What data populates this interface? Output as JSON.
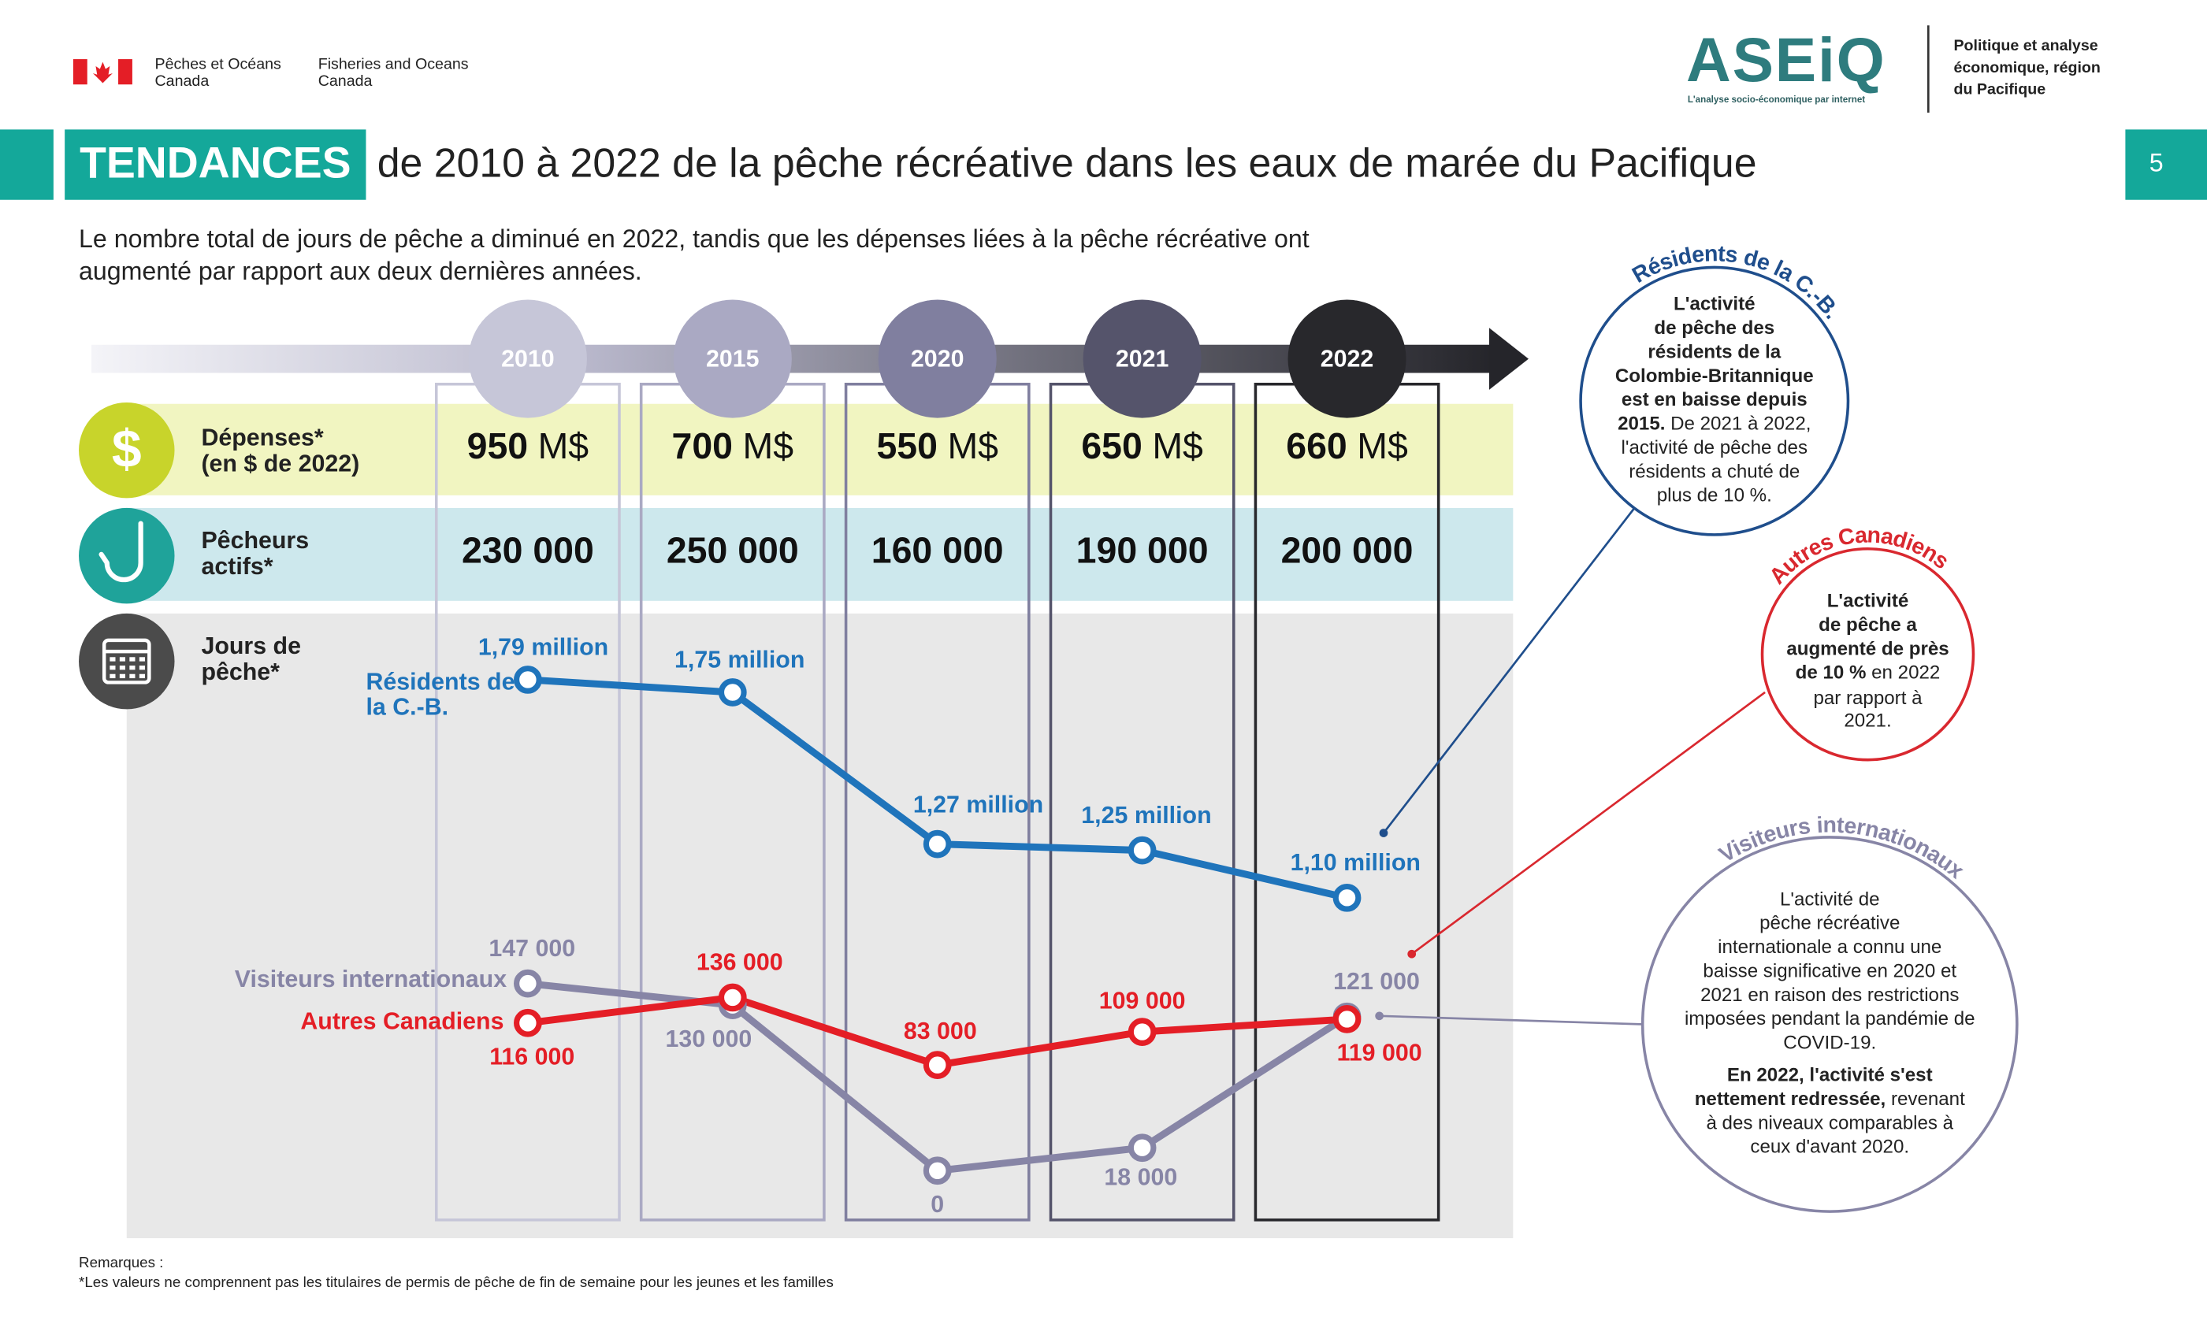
{
  "header": {
    "dept_fr": [
      "Pêches et Océans",
      "Canada"
    ],
    "dept_en": [
      "Fisheries and Oceans",
      "Canada"
    ],
    "logo": "ASEiQ",
    "logo_tagline": "L'analyse socio-économique par internet",
    "unit": [
      "Politique et analyse",
      "économique, région",
      "du Pacifique"
    ],
    "tag": "TENDANCES",
    "title": "de 2010 à 2022 de la pêche récréative dans les eaux de marée du Pacifique",
    "page": "5",
    "intro": [
      "Le nombre total de jours de pêche a diminué en 2022, tandis que les dépenses liées à la pêche récréative ont",
      "augmenté par rapport aux deux dernières années."
    ]
  },
  "rows": {
    "depenses": {
      "icon": "$",
      "label": [
        "Dépenses*",
        "(en $ de 2022)"
      ],
      "values": [
        950,
        700,
        550,
        650,
        660
      ],
      "unit": "M$"
    },
    "pecheurs": {
      "label": [
        "Pêcheurs",
        "actifs*"
      ],
      "values": [
        230000,
        250000,
        160000,
        190000,
        200000
      ],
      "value_labels": [
        "230 000",
        "250 000",
        "160 000",
        "190 000",
        "200 000"
      ]
    },
    "jours": {
      "label": [
        "Jours de",
        "pêche*"
      ]
    }
  },
  "chart_data": {
    "type": "line",
    "categories": [
      "2010",
      "2015",
      "2020",
      "2021",
      "2022"
    ],
    "ylim": [
      0,
      150000
    ],
    "y2lim": [
      1000000,
      1800000
    ],
    "series": [
      {
        "name": "Résidents de la C.-B.",
        "color": "#1f74bb",
        "axis": "y2",
        "values": [
          1790000,
          1750000,
          1270000,
          1250000,
          1100000
        ],
        "value_labels": [
          "1,79 million",
          "1,75 million",
          "1,27 million",
          "1,25 million",
          "1,10 million"
        ]
      },
      {
        "name": "Visiteurs internationaux",
        "color": "#8785a6",
        "values": [
          147000,
          130000,
          0,
          18000,
          121000
        ],
        "value_labels": [
          "147 000",
          "130 000",
          "0",
          "18 000",
          "121 000"
        ]
      },
      {
        "name": "Autres Canadiens",
        "color": "#e41e26",
        "values": [
          116000,
          136000,
          83000,
          109000,
          119000
        ],
        "value_labels": [
          "116 000",
          "136 000",
          "83 000",
          "109 000",
          "119 000"
        ]
      }
    ]
  },
  "callouts": [
    {
      "title": "Résidents de la C.-B.",
      "color": "#1f4e8c",
      "lines": [
        [
          {
            "text": "L'activité",
            "bold": true
          }
        ],
        [
          {
            "text": "de pêche des",
            "bold": true
          }
        ],
        [
          {
            "text": "résidents de la",
            "bold": true
          }
        ],
        [
          {
            "text": "Colombie-Britannique",
            "bold": true
          }
        ],
        [
          {
            "text": "est en baisse depuis",
            "bold": true
          }
        ],
        [
          {
            "text": "2015.",
            "bold": true
          },
          {
            "text": " De 2021 à 2022,"
          }
        ],
        [
          {
            "text": "l'activité de pêche des"
          }
        ],
        [
          {
            "text": "résidents a chuté de"
          }
        ],
        [
          {
            "text": "plus de 10 %."
          }
        ]
      ]
    },
    {
      "title": "Autres Canadiens",
      "color": "#d9282f",
      "lines": [
        [
          {
            "text": "L'activité",
            "bold": true
          }
        ],
        [
          {
            "text": "de pêche a",
            "bold": true
          }
        ],
        [
          {
            "text": "augmenté de près",
            "bold": true
          }
        ],
        [
          {
            "text": "de 10 %",
            "bold": true
          },
          {
            "text": " en 2022"
          }
        ],
        [
          {
            "text": "par rapport à"
          }
        ],
        [
          {
            "text": "2021."
          }
        ]
      ]
    },
    {
      "title": "Visiteurs internationaux",
      "color": "#8785a6",
      "lines": [
        [
          {
            "text": "L'activité de"
          }
        ],
        [
          {
            "text": "pêche récréative"
          }
        ],
        [
          {
            "text": "internationale a connu une"
          }
        ],
        [
          {
            "text": "baisse significative en 2020 et"
          }
        ],
        [
          {
            "text": "2021 en raison des restrictions"
          }
        ],
        [
          {
            "text": "imposées pendant la pandémie de"
          }
        ],
        [
          {
            "text": "COVID-19."
          }
        ],
        [
          {
            "text": "En 2022, l'activité s'est",
            "bold": true
          }
        ],
        [
          {
            "text": "nettement redressée,",
            "bold": true
          },
          {
            "text": " revenant"
          }
        ],
        [
          {
            "text": "à des niveaux comparables à"
          }
        ],
        [
          {
            "text": "ceux d'avant 2020."
          }
        ]
      ]
    }
  ],
  "notes": [
    "Remarques :",
    "*Les valeurs ne comprennent pas les titulaires de permis de pêche de fin de semaine pour les jeunes et les familles"
  ]
}
